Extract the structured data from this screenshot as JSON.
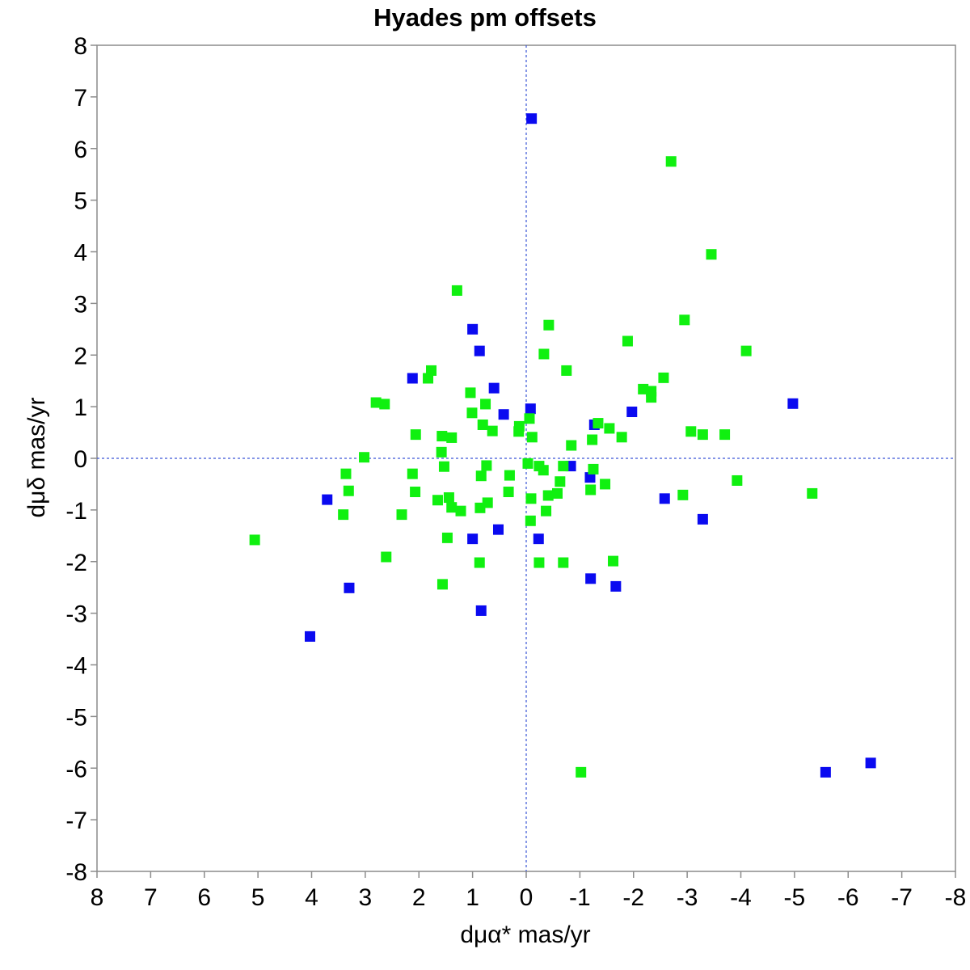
{
  "chart_data": {
    "type": "scatter",
    "title": "Hyades pm offsets",
    "xlabel": "dμα* mas/yr",
    "ylabel": "dμδ mas/yr",
    "xlim": [
      8,
      -8
    ],
    "ylim": [
      -8,
      8
    ],
    "x_reversed": true,
    "xticks": [
      8,
      7,
      6,
      5,
      4,
      3,
      2,
      1,
      0,
      -1,
      -2,
      -3,
      -4,
      -5,
      -6,
      -7,
      -8
    ],
    "yticks": [
      -8,
      -7,
      -6,
      -5,
      -4,
      -3,
      -2,
      -1,
      0,
      1,
      2,
      3,
      4,
      5,
      6,
      7,
      8
    ],
    "grid": false,
    "reference_lines": {
      "x": 0,
      "y": 0,
      "style": "dashed",
      "color": "#3a55d6"
    },
    "colors": {
      "blue": "#0a0af0",
      "green": "#10f010"
    },
    "series": [
      {
        "color": "#0a0af0",
        "points": [
          [
            -0.1,
            6.58
          ],
          [
            1.0,
            2.5
          ],
          [
            0.87,
            2.08
          ],
          [
            2.12,
            1.55
          ],
          [
            0.6,
            1.36
          ],
          [
            0.42,
            0.85
          ],
          [
            -0.08,
            0.96
          ],
          [
            -1.27,
            0.65
          ],
          [
            -1.97,
            0.9
          ],
          [
            -4.97,
            1.06
          ],
          [
            3.71,
            -0.8
          ],
          [
            -0.83,
            -0.15
          ],
          [
            -1.19,
            -0.37
          ],
          [
            -2.58,
            -0.78
          ],
          [
            -3.29,
            -1.18
          ],
          [
            1.0,
            -1.56
          ],
          [
            0.52,
            -1.38
          ],
          [
            -0.23,
            -1.56
          ],
          [
            -1.2,
            -2.33
          ],
          [
            -1.67,
            -2.48
          ],
          [
            3.3,
            -2.51
          ],
          [
            0.84,
            -2.95
          ],
          [
            4.03,
            -3.45
          ],
          [
            -5.58,
            -6.08
          ],
          [
            -6.42,
            -5.9
          ]
        ]
      },
      {
        "color": "#10f010",
        "points": [
          [
            -2.7,
            5.75
          ],
          [
            -3.45,
            3.95
          ],
          [
            1.29,
            3.25
          ],
          [
            -0.42,
            2.58
          ],
          [
            -2.95,
            2.68
          ],
          [
            -1.89,
            2.27
          ],
          [
            -4.1,
            2.08
          ],
          [
            -0.33,
            2.02
          ],
          [
            1.77,
            1.7
          ],
          [
            -0.75,
            1.7
          ],
          [
            1.83,
            1.55
          ],
          [
            -2.56,
            1.56
          ],
          [
            -2.18,
            1.34
          ],
          [
            -2.33,
            1.3
          ],
          [
            -2.33,
            1.18
          ],
          [
            2.8,
            1.08
          ],
          [
            2.64,
            1.05
          ],
          [
            1.04,
            1.27
          ],
          [
            0.76,
            1.05
          ],
          [
            1.01,
            0.88
          ],
          [
            0.81,
            0.65
          ],
          [
            0.63,
            0.53
          ],
          [
            -0.06,
            0.77
          ],
          [
            0.13,
            0.62
          ],
          [
            0.14,
            0.52
          ],
          [
            -0.11,
            0.41
          ],
          [
            -1.34,
            0.68
          ],
          [
            -1.55,
            0.58
          ],
          [
            -1.78,
            0.41
          ],
          [
            -1.23,
            0.36
          ],
          [
            -3.07,
            0.52
          ],
          [
            -3.29,
            0.46
          ],
          [
            -3.7,
            0.46
          ],
          [
            2.06,
            0.46
          ],
          [
            1.57,
            0.43
          ],
          [
            1.39,
            0.4
          ],
          [
            1.58,
            0.12
          ],
          [
            3.02,
            0.02
          ],
          [
            -0.84,
            0.25
          ],
          [
            -0.03,
            -0.1
          ],
          [
            1.53,
            -0.16
          ],
          [
            0.74,
            -0.14
          ],
          [
            -0.24,
            -0.15
          ],
          [
            -0.69,
            -0.15
          ],
          [
            -0.32,
            -0.23
          ],
          [
            2.12,
            -0.3
          ],
          [
            3.36,
            -0.3
          ],
          [
            0.84,
            -0.34
          ],
          [
            0.31,
            -0.33
          ],
          [
            -1.25,
            -0.21
          ],
          [
            -3.93,
            -0.43
          ],
          [
            -0.63,
            -0.45
          ],
          [
            -1.47,
            -0.5
          ],
          [
            3.31,
            -0.63
          ],
          [
            2.07,
            -0.65
          ],
          [
            0.33,
            -0.65
          ],
          [
            -0.41,
            -0.72
          ],
          [
            -0.58,
            -0.68
          ],
          [
            -1.2,
            -0.61
          ],
          [
            -2.92,
            -0.71
          ],
          [
            -5.33,
            -0.68
          ],
          [
            1.44,
            -0.76
          ],
          [
            1.65,
            -0.81
          ],
          [
            0.72,
            -0.86
          ],
          [
            0.86,
            -0.96
          ],
          [
            1.39,
            -0.95
          ],
          [
            1.22,
            -1.02
          ],
          [
            -0.37,
            -1.02
          ],
          [
            -0.09,
            -0.78
          ],
          [
            3.41,
            -1.09
          ],
          [
            2.32,
            -1.09
          ],
          [
            5.06,
            -1.58
          ],
          [
            1.47,
            -1.54
          ],
          [
            -0.08,
            -1.21
          ],
          [
            2.61,
            -1.91
          ],
          [
            0.87,
            -2.02
          ],
          [
            -0.24,
            -2.02
          ],
          [
            -0.69,
            -2.02
          ],
          [
            -1.62,
            -1.99
          ],
          [
            1.56,
            -2.44
          ],
          [
            -1.02,
            -6.08
          ]
        ]
      }
    ]
  }
}
